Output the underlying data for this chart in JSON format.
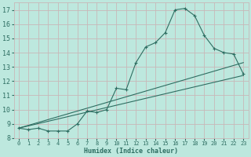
{
  "xlabel": "Humidex (Indice chaleur)",
  "bg_color": "#bde8de",
  "grid_color": "#c8b8b8",
  "line_color": "#2e6e62",
  "xlim": [
    -0.5,
    23.5
  ],
  "ylim": [
    8,
    17.5
  ],
  "yticks": [
    8,
    9,
    10,
    11,
    12,
    13,
    14,
    15,
    16,
    17
  ],
  "xticks": [
    0,
    1,
    2,
    3,
    4,
    5,
    6,
    7,
    8,
    9,
    10,
    11,
    12,
    13,
    14,
    15,
    16,
    17,
    18,
    19,
    20,
    21,
    22,
    23
  ],
  "line1_x": [
    0,
    1,
    2,
    3,
    4,
    5,
    6,
    7,
    8,
    9,
    10,
    11,
    12,
    13,
    14,
    15,
    16,
    17,
    18,
    19,
    20,
    21,
    22,
    23
  ],
  "line1_y": [
    8.7,
    8.6,
    8.7,
    8.5,
    8.5,
    8.5,
    9.0,
    9.9,
    9.8,
    10.0,
    11.5,
    11.4,
    13.3,
    14.4,
    14.7,
    15.4,
    17.0,
    17.1,
    16.6,
    15.2,
    14.3,
    14.0,
    13.9,
    12.5
  ],
  "line2_x": [
    0,
    23
  ],
  "line2_y": [
    8.7,
    12.4
  ],
  "line3_x": [
    0,
    23
  ],
  "line3_y": [
    8.7,
    13.3
  ]
}
